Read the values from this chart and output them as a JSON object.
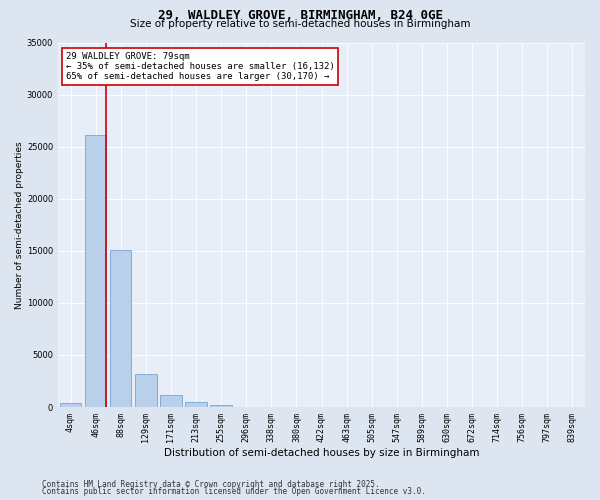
{
  "title": "29, WALDLEY GROVE, BIRMINGHAM, B24 0GE",
  "subtitle": "Size of property relative to semi-detached houses in Birmingham",
  "xlabel": "Distribution of semi-detached houses by size in Birmingham",
  "ylabel": "Number of semi-detached properties",
  "categories": [
    "4sqm",
    "46sqm",
    "88sqm",
    "129sqm",
    "171sqm",
    "213sqm",
    "255sqm",
    "296sqm",
    "338sqm",
    "380sqm",
    "422sqm",
    "463sqm",
    "505sqm",
    "547sqm",
    "589sqm",
    "630sqm",
    "672sqm",
    "714sqm",
    "756sqm",
    "797sqm",
    "839sqm"
  ],
  "values": [
    350,
    26100,
    15100,
    3200,
    1200,
    450,
    200,
    0,
    0,
    0,
    0,
    0,
    0,
    0,
    0,
    0,
    0,
    0,
    0,
    0,
    0
  ],
  "bar_color": "#b8d0ea",
  "bar_edge_color": "#6699cc",
  "annotation_title": "29 WALDLEY GROVE: 79sqm",
  "annotation_line1": "← 35% of semi-detached houses are smaller (16,132)",
  "annotation_line2": "65% of semi-detached houses are larger (30,170) →",
  "vline_color": "#cc0000",
  "vline_x": 1.42,
  "ylim": [
    0,
    35000
  ],
  "yticks": [
    0,
    5000,
    10000,
    15000,
    20000,
    25000,
    30000,
    35000
  ],
  "footer1": "Contains HM Land Registry data © Crown copyright and database right 2025.",
  "footer2": "Contains public sector information licensed under the Open Government Licence v3.0.",
  "bg_color": "#dde6f0",
  "plot_bg_color": "#e8eef8",
  "annotation_box_color": "#ffffff",
  "annotation_box_edge": "#cc0000",
  "title_fontsize": 9,
  "subtitle_fontsize": 7.5,
  "xlabel_fontsize": 7.5,
  "ylabel_fontsize": 6.5,
  "tick_fontsize": 6,
  "annotation_fontsize": 6.5,
  "footer_fontsize": 5.5
}
